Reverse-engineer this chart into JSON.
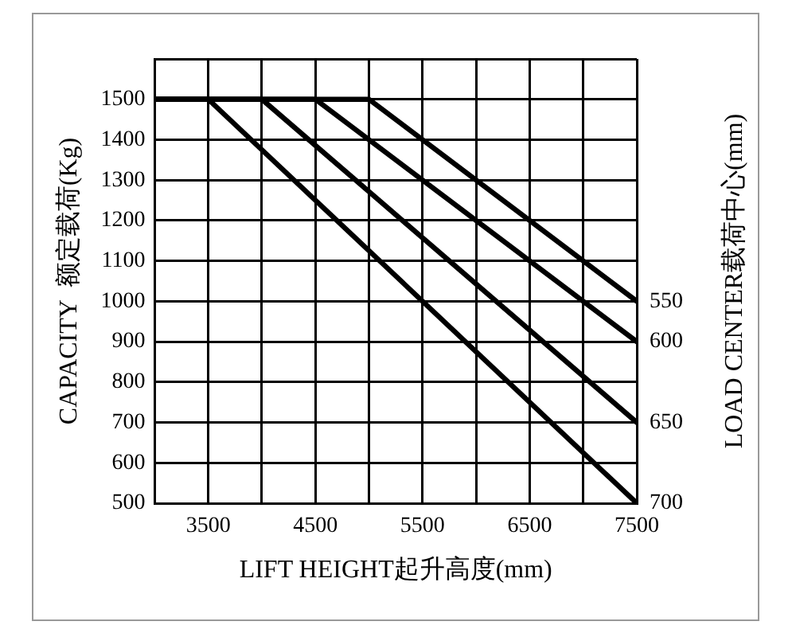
{
  "chart_data": {
    "type": "line",
    "xlabel": "LIFT HEIGHT起升高度(mm)",
    "ylabel": "CAPACITY  额定载荷(Kg)",
    "y2label": "LOAD CENTER载荷中心(mm)",
    "series": [
      {
        "name": "550",
        "color": "#000000",
        "x": [
          3000,
          5000,
          7500
        ],
        "values": [
          1500,
          1500,
          1000
        ]
      },
      {
        "name": "600",
        "color": "#000000",
        "x": [
          3000,
          4500,
          7500
        ],
        "values": [
          1500,
          1500,
          900
        ]
      },
      {
        "name": "650",
        "color": "#000000",
        "x": [
          3000,
          4000,
          7500
        ],
        "values": [
          1500,
          1500,
          700
        ]
      },
      {
        "name": "700",
        "color": "#000000",
        "x": [
          3000,
          3500,
          7500
        ],
        "values": [
          1500,
          1500,
          500
        ]
      }
    ],
    "xlim": [
      3000,
      7500
    ],
    "xticks": [
      {
        "value": 3000,
        "label": null
      },
      3500,
      {
        "value": 4000,
        "label": null
      },
      4500,
      {
        "value": 5000,
        "label": null
      },
      5500,
      {
        "value": 6000,
        "label": null
      },
      6500,
      {
        "value": 7000,
        "label": null
      },
      7500
    ],
    "ylim": [
      500,
      1600
    ],
    "yticks": [
      500,
      600,
      700,
      800,
      900,
      1000,
      1100,
      1200,
      1300,
      1400,
      1500,
      {
        "value": 1600,
        "label": null
      }
    ],
    "grid": true,
    "legend": false,
    "marker": "none",
    "line_style": "solid"
  }
}
